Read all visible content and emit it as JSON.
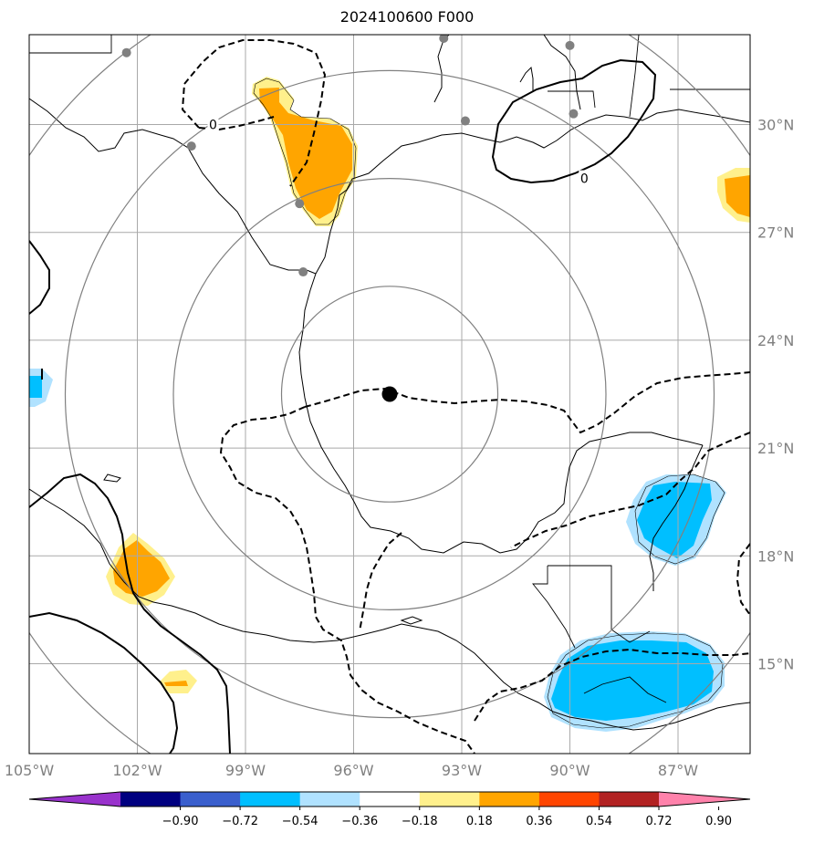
{
  "title": "2024100600 F000",
  "map": {
    "projection": "lat-lon",
    "lon_range": [
      -105.0,
      -85.0
    ],
    "lat_range": [
      12.5,
      32.5
    ],
    "longitude_ticks": [
      "105°W",
      "102°W",
      "99°W",
      "96°W",
      "93°W",
      "90°W",
      "87°W"
    ],
    "latitude_ticks": [
      "30°N",
      "27°N",
      "24°N",
      "21°N",
      "18°N",
      "15°N"
    ],
    "gridlines": true,
    "grid_color": "#a9a9a9",
    "center_marker": {
      "lon": -95.0,
      "lat": 22.5
    },
    "range_ring_radii_deg": [
      3,
      6,
      9,
      12
    ],
    "station_dots": [
      {
        "lon": -102.3,
        "lat": 32.0
      },
      {
        "lon": -93.5,
        "lat": 32.4
      },
      {
        "lon": -90.0,
        "lat": 32.2
      },
      {
        "lon": -100.5,
        "lat": 29.4
      },
      {
        "lon": -92.9,
        "lat": 30.1
      },
      {
        "lon": -89.9,
        "lat": 30.3
      },
      {
        "lon": -97.5,
        "lat": 27.8
      },
      {
        "lon": -97.4,
        "lat": 25.9
      }
    ],
    "contour_labels": [
      {
        "text": "0",
        "lon": -99.9,
        "lat": 30.0
      },
      {
        "text": "0",
        "lon": -89.6,
        "lat": 28.5
      }
    ]
  },
  "colorbar": {
    "tick_labels": [
      "−0.90",
      "−0.72",
      "−0.54",
      "−0.36",
      "−0.18",
      "0.18",
      "0.36",
      "0.54",
      "0.72",
      "0.90"
    ],
    "extend": "both",
    "colors": [
      "#9932cc",
      "#000080",
      "#3a5fcd",
      "#00bfff",
      "#b0e2ff",
      "#ffffff",
      "#fff08c",
      "#ffa500",
      "#ff4500",
      "#b22222",
      "#ff82ab"
    ]
  }
}
